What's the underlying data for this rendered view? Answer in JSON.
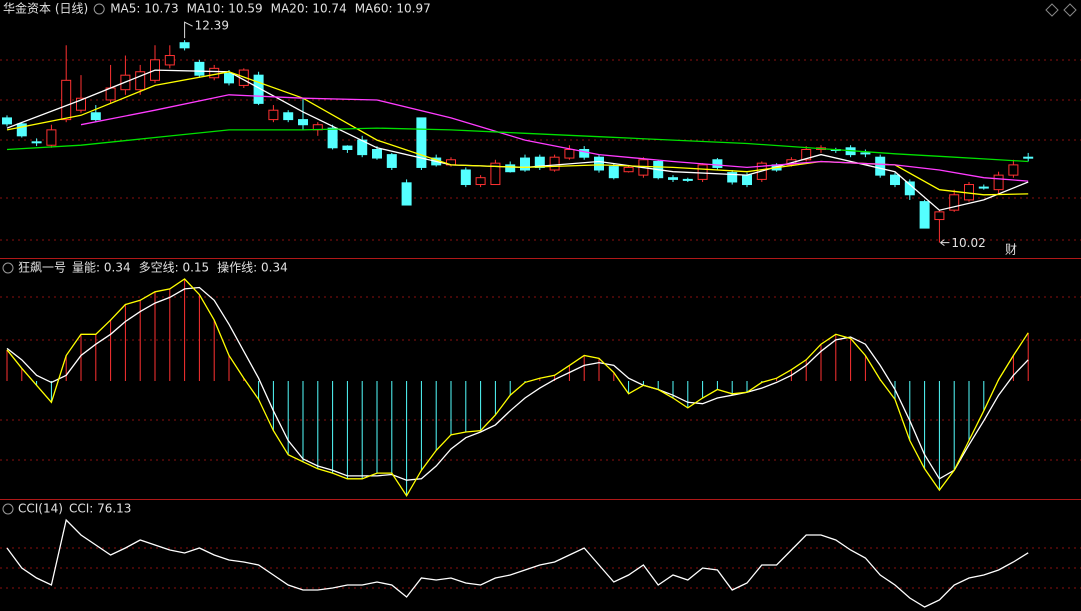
{
  "chart_data": [
    {
      "type": "candlestick",
      "title": "华金资本 (日线)",
      "legend": [
        {
          "label": "MA5: 10.73",
          "color": "#ffffff"
        },
        {
          "label": "MA10: 10.59",
          "color": "#ffff00"
        },
        {
          "label": "MA20: 10.74",
          "color": "#ff3cff"
        },
        {
          "label": "MA60: 10.97",
          "color": "#00e000"
        }
      ],
      "ylim": [
        9.84,
        12.86
      ],
      "up_color": "#ff3232",
      "down_color": "#54ffff",
      "open": [
        11.48,
        11.41,
        11.2,
        11.16,
        11.46,
        11.57,
        11.54,
        11.69,
        11.81,
        11.81,
        11.92,
        12.1,
        12.36,
        12.13,
        11.95,
        12.0,
        11.86,
        11.98,
        11.46,
        11.54,
        11.46,
        11.34,
        11.36,
        11.15,
        11.22,
        11.11,
        11.05,
        10.72,
        11.48,
        11.01,
        10.93,
        10.87,
        10.7,
        10.7,
        10.93,
        11.01,
        11.02,
        10.87,
        11.01,
        11.11,
        11.02,
        10.91,
        10.85,
        10.81,
        10.97,
        10.78,
        10.76,
        10.76,
        10.99,
        10.84,
        10.81,
        10.76,
        10.93,
        10.93,
        10.99,
        11.11,
        11.11,
        11.13,
        11.07,
        11.02,
        10.81,
        10.73,
        10.5,
        10.29,
        10.4,
        10.52,
        10.67,
        10.64,
        10.81,
        11.02
      ],
      "close": [
        11.41,
        11.27,
        11.19,
        11.34,
        11.92,
        11.71,
        11.46,
        11.83,
        11.98,
        12.02,
        12.16,
        12.21,
        12.3,
        11.98,
        12.06,
        11.89,
        12.04,
        11.65,
        11.57,
        11.46,
        11.4,
        11.4,
        11.13,
        11.11,
        11.05,
        11.01,
        10.9,
        10.46,
        10.9,
        10.93,
        10.99,
        10.7,
        10.78,
        10.95,
        10.85,
        10.87,
        10.9,
        11.02,
        11.11,
        11.02,
        10.87,
        10.78,
        10.9,
        10.99,
        10.78,
        10.76,
        10.76,
        10.93,
        10.9,
        10.73,
        10.7,
        10.95,
        10.87,
        10.99,
        11.11,
        11.13,
        11.11,
        11.05,
        11.07,
        10.81,
        10.7,
        10.58,
        10.19,
        10.38,
        10.58,
        10.7,
        10.67,
        10.81,
        10.93,
        11.02
      ],
      "low": [
        11.38,
        11.25,
        11.15,
        11.13,
        11.43,
        11.54,
        11.43,
        11.65,
        11.75,
        11.75,
        11.89,
        12.06,
        12.27,
        11.95,
        11.92,
        11.86,
        11.83,
        11.63,
        11.43,
        11.43,
        11.34,
        11.27,
        11.11,
        11.07,
        11.02,
        10.99,
        10.87,
        10.46,
        10.87,
        10.91,
        10.91,
        10.67,
        10.67,
        10.7,
        10.84,
        10.85,
        10.87,
        10.85,
        10.99,
        10.99,
        10.84,
        10.76,
        10.84,
        10.78,
        10.76,
        10.73,
        10.73,
        10.73,
        10.87,
        10.7,
        10.67,
        10.73,
        10.85,
        10.91,
        10.97,
        11.07,
        11.07,
        11.02,
        11.02,
        10.78,
        10.67,
        10.52,
        10.19,
        10.02,
        10.38,
        10.5,
        10.64,
        10.58,
        10.78,
        10.97
      ],
      "high": [
        11.51,
        11.43,
        11.24,
        11.4,
        12.33,
        11.98,
        11.63,
        12.1,
        12.21,
        12.1,
        12.33,
        12.33,
        12.39,
        12.16,
        12.1,
        12.04,
        12.06,
        12.02,
        11.63,
        11.57,
        11.71,
        11.43,
        11.4,
        11.16,
        11.27,
        11.15,
        11.07,
        10.76,
        11.48,
        11.05,
        11.02,
        10.9,
        10.81,
        10.99,
        10.97,
        11.05,
        11.05,
        11.05,
        11.16,
        11.15,
        11.05,
        10.95,
        10.93,
        11.02,
        10.99,
        10.81,
        10.78,
        10.95,
        11.01,
        10.87,
        10.84,
        10.97,
        10.95,
        11.02,
        11.15,
        11.16,
        11.13,
        11.16,
        11.11,
        11.05,
        10.84,
        10.76,
        10.52,
        10.4,
        10.64,
        10.73,
        10.7,
        10.85,
        10.99,
        11.07
      ],
      "series": [
        {
          "color": "#ffffff",
          "x": [
            0,
            5,
            10,
            15,
            20,
            25,
            30,
            35,
            40,
            45,
            50,
            55,
            60,
            63,
            66,
            69
          ],
          "values": [
            11.36,
            11.69,
            12.04,
            12.02,
            11.55,
            11.13,
            10.93,
            10.9,
            10.97,
            10.85,
            10.81,
            11.05,
            10.85,
            10.4,
            10.52,
            10.73
          ]
        },
        {
          "color": "#ffff00",
          "x": [
            0,
            5,
            10,
            15,
            20,
            25,
            30,
            35,
            40,
            45,
            50,
            55,
            60,
            63,
            66,
            69
          ],
          "values": [
            11.34,
            11.51,
            11.86,
            12.02,
            11.71,
            11.22,
            10.93,
            10.9,
            10.93,
            10.9,
            10.85,
            10.97,
            10.93,
            10.64,
            10.58,
            10.59
          ]
        },
        {
          "color": "#ff3cff",
          "x": [
            0,
            5,
            10,
            15,
            20,
            25,
            30,
            35,
            40,
            45,
            50,
            55,
            60,
            63,
            66,
            69
          ],
          "values": [
            null,
            11.4,
            11.57,
            11.75,
            11.71,
            11.69,
            11.48,
            11.22,
            11.05,
            10.97,
            10.9,
            10.97,
            10.93,
            10.87,
            10.78,
            10.74
          ]
        },
        {
          "color": "#00e000",
          "x": [
            0,
            5,
            10,
            15,
            20,
            25,
            30,
            35,
            40,
            45,
            50,
            55,
            60,
            63,
            66,
            69
          ],
          "values": [
            11.11,
            11.16,
            11.25,
            11.34,
            11.34,
            11.36,
            11.34,
            11.3,
            11.26,
            11.22,
            11.18,
            11.12,
            11.06,
            11.03,
            11.0,
            10.97
          ]
        }
      ],
      "max_label": 12.39,
      "min_label": 10.02,
      "badge": "财"
    },
    {
      "type": "indicator",
      "title": "狂飙一号",
      "legend": [
        {
          "label": "量能: 0.34",
          "color": "#ffffff"
        },
        {
          "label": "多空线: 0.15",
          "color": "#ffffff"
        },
        {
          "label": "操作线: 0.34",
          "color": "#ffff00"
        }
      ],
      "ylim": [
        -0.84,
        0.84
      ],
      "up_color": "#ff3232",
      "down_color": "#54ffff",
      "series": [
        {
          "color": "#ffffff",
          "values": [
            0.23,
            0.15,
            0.04,
            -0.01,
            0.04,
            0.18,
            0.26,
            0.33,
            0.42,
            0.49,
            0.55,
            0.59,
            0.65,
            0.66,
            0.57,
            0.4,
            0.21,
            0.02,
            -0.21,
            -0.42,
            -0.55,
            -0.6,
            -0.63,
            -0.67,
            -0.67,
            -0.67,
            -0.66,
            -0.7,
            -0.69,
            -0.6,
            -0.48,
            -0.4,
            -0.36,
            -0.31,
            -0.21,
            -0.12,
            -0.05,
            0.01,
            0.06,
            0.11,
            0.13,
            0.11,
            0.02,
            -0.03,
            -0.06,
            -0.1,
            -0.15,
            -0.16,
            -0.12,
            -0.1,
            -0.08,
            -0.05,
            -0.01,
            0.04,
            0.11,
            0.21,
            0.29,
            0.31,
            0.26,
            0.11,
            -0.06,
            -0.28,
            -0.52,
            -0.69,
            -0.63,
            -0.45,
            -0.28,
            -0.1,
            0.04,
            0.15
          ]
        },
        {
          "color": "#ffff00",
          "histogram": true,
          "values": [
            0.22,
            0.09,
            -0.03,
            -0.15,
            0.18,
            0.33,
            0.33,
            0.43,
            0.54,
            0.57,
            0.63,
            0.65,
            0.72,
            0.61,
            0.43,
            0.18,
            0.02,
            -0.13,
            -0.35,
            -0.52,
            -0.57,
            -0.62,
            -0.65,
            -0.69,
            -0.69,
            -0.65,
            -0.65,
            -0.81,
            -0.63,
            -0.49,
            -0.38,
            -0.36,
            -0.35,
            -0.24,
            -0.1,
            -0.01,
            0.02,
            0.04,
            0.11,
            0.18,
            0.16,
            0.06,
            -0.09,
            -0.03,
            -0.06,
            -0.12,
            -0.19,
            -0.12,
            -0.06,
            -0.09,
            -0.08,
            -0.01,
            0.02,
            0.08,
            0.15,
            0.26,
            0.33,
            0.3,
            0.18,
            0.01,
            -0.13,
            -0.42,
            -0.62,
            -0.77,
            -0.63,
            -0.42,
            -0.21,
            0.01,
            0.18,
            0.34
          ]
        }
      ]
    },
    {
      "type": "line",
      "title": "CCI(14)",
      "legend": [
        {
          "label": "CCI: 76.13",
          "color": "#ffffff"
        }
      ],
      "ylim": [
        -215,
        330
      ],
      "series": [
        {
          "color": "#ffffff",
          "values": [
            100,
            0,
            -50,
            -85,
            240,
            165,
            115,
            65,
            100,
            140,
            115,
            90,
            75,
            100,
            65,
            40,
            30,
            15,
            -35,
            -85,
            -110,
            -110,
            -100,
            -85,
            -85,
            -70,
            -85,
            -145,
            -50,
            -60,
            -50,
            -75,
            -85,
            -50,
            -35,
            -10,
            15,
            30,
            65,
            100,
            15,
            -70,
            -35,
            15,
            -85,
            -35,
            -60,
            0,
            -10,
            -110,
            -75,
            15,
            15,
            90,
            165,
            165,
            140,
            90,
            50,
            -35,
            -85,
            -150,
            -195,
            -160,
            -85,
            -50,
            -35,
            -10,
            30,
            76.13
          ]
        }
      ]
    }
  ]
}
